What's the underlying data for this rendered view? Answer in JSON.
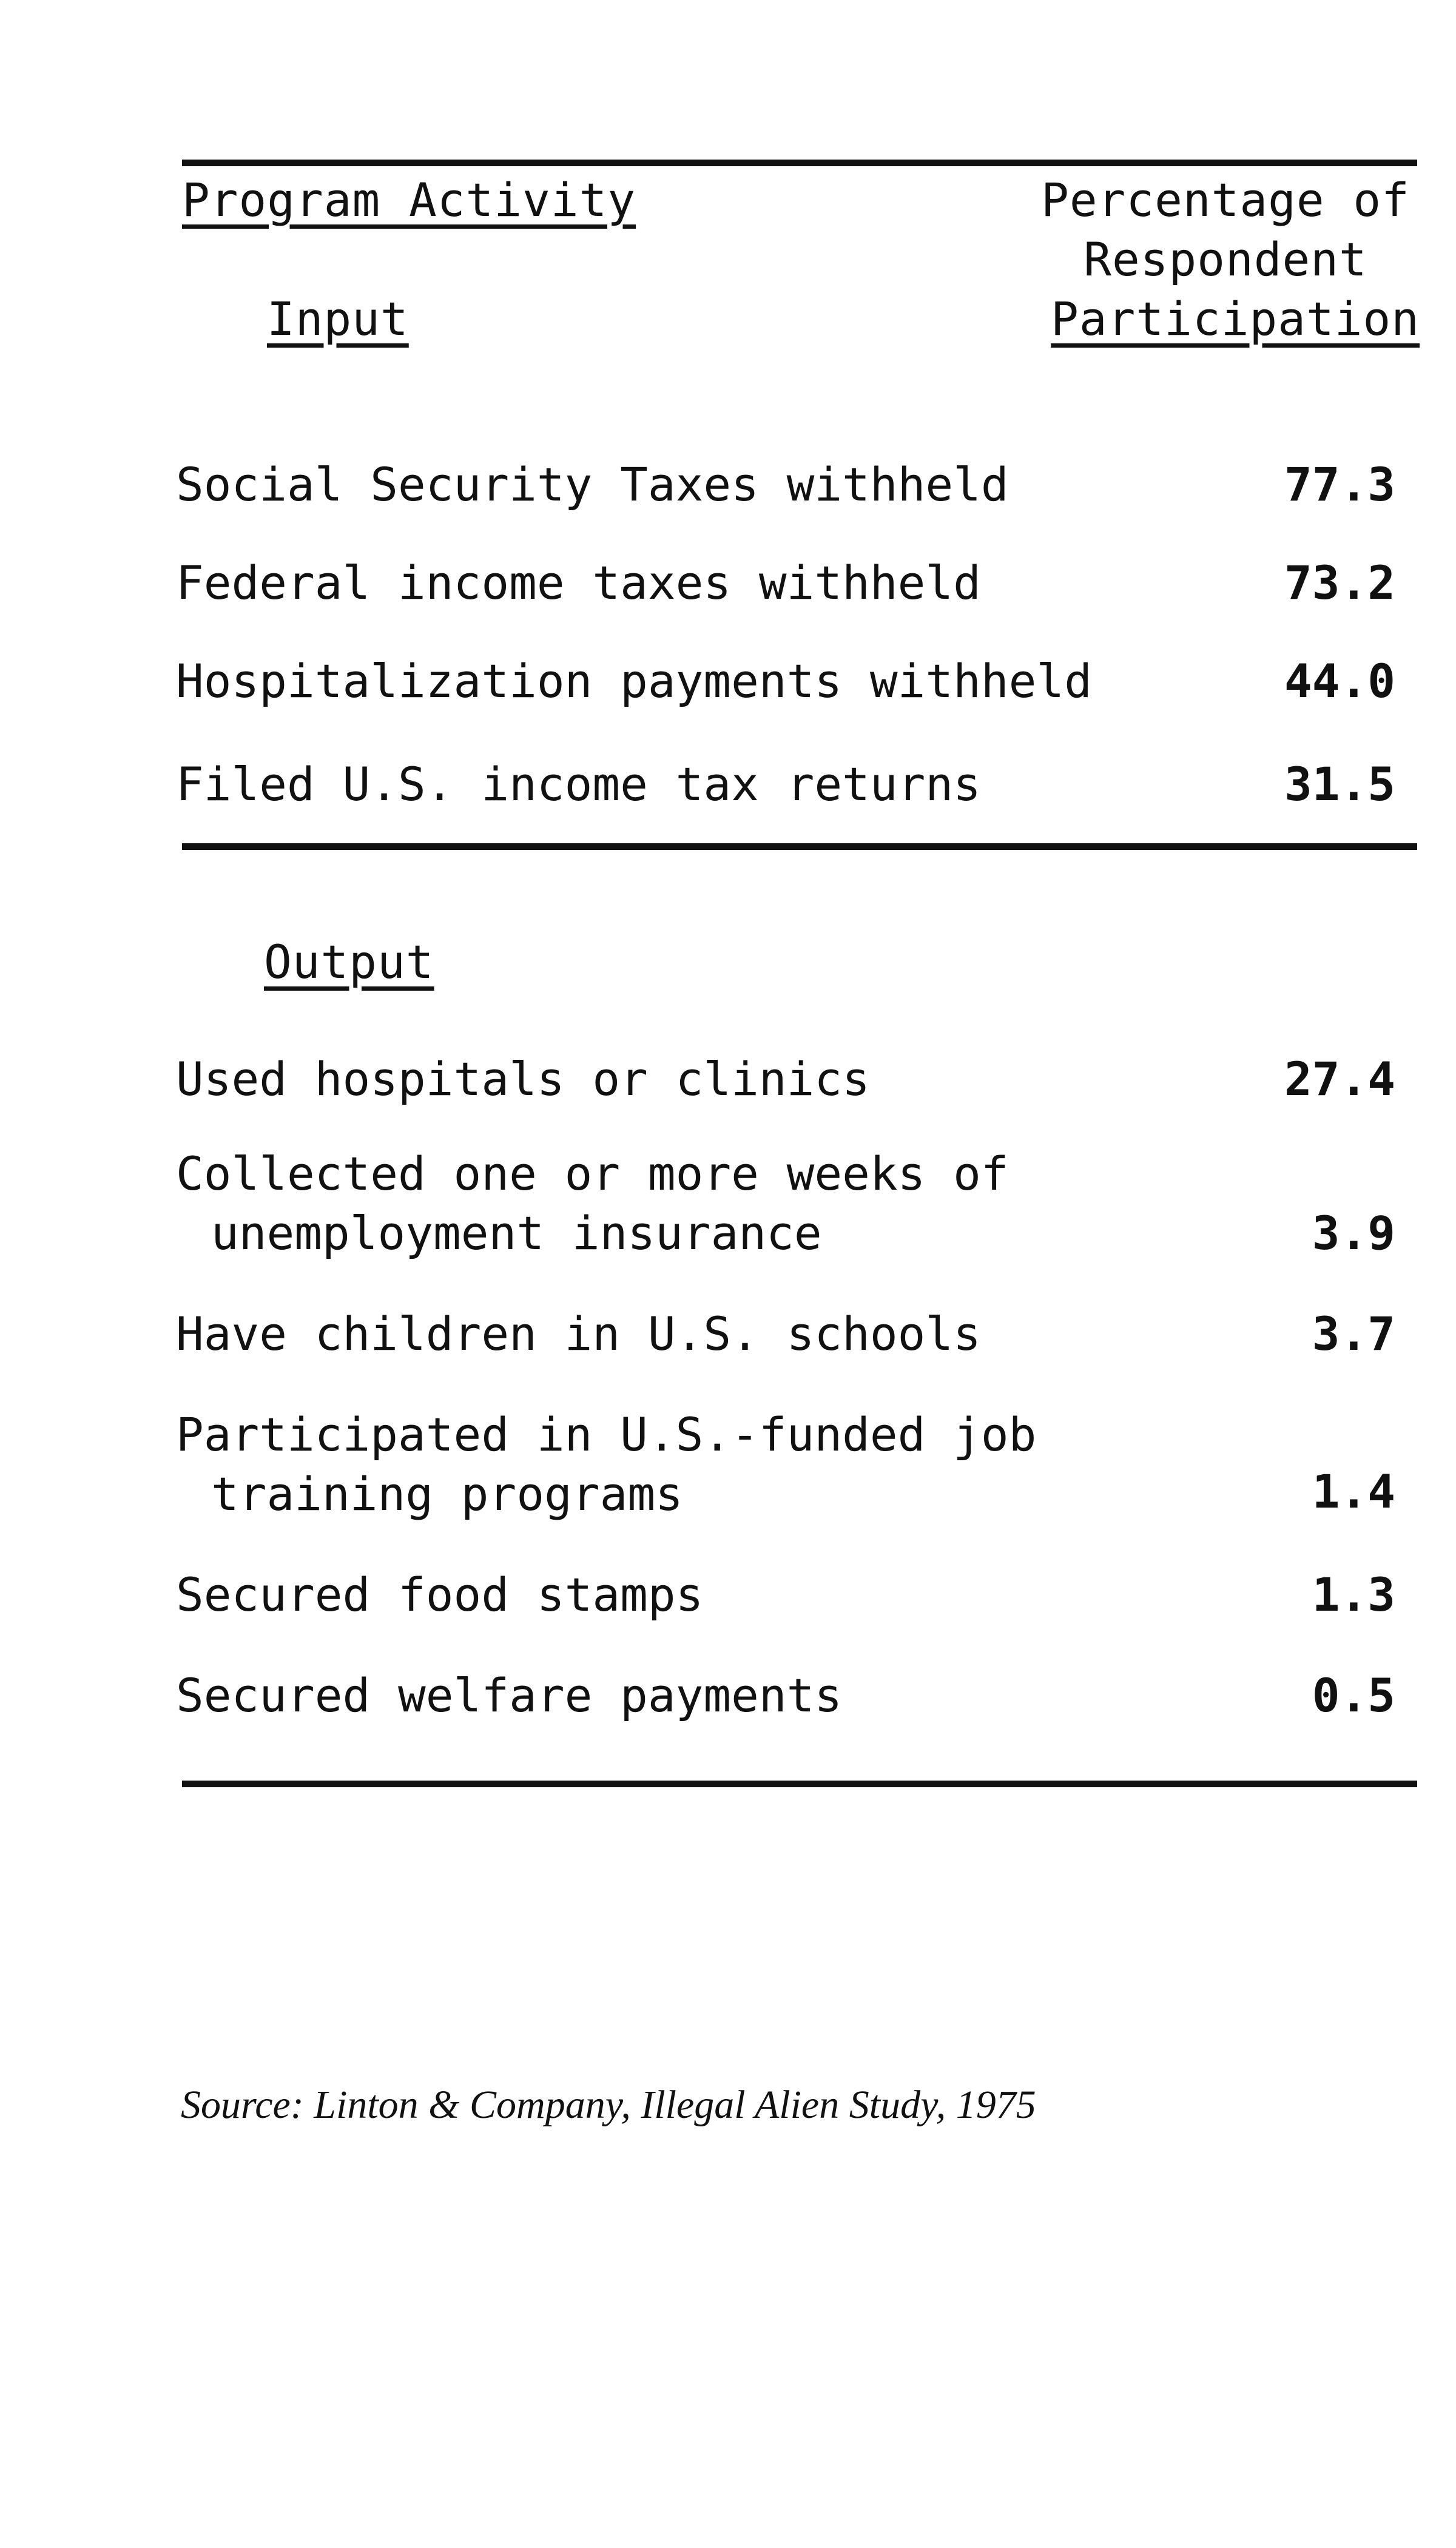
{
  "header": {
    "left_label": "Program Activity",
    "right_label_lines": [
      "Percentage of",
      "Respondent",
      "Participation"
    ]
  },
  "input_section": {
    "title": "Input",
    "rows": [
      {
        "label": "Social Security Taxes withheld",
        "value": "77.3"
      },
      {
        "label": "Federal income taxes withheld",
        "value": "73.2"
      },
      {
        "label": "Hospitalization payments withheld",
        "value": "44.0"
      },
      {
        "label": "Filed U.S. income tax returns",
        "value": "31.5"
      }
    ]
  },
  "output_section": {
    "title": "Output",
    "rows": [
      {
        "label_lines": [
          "Used hospitals or clinics"
        ],
        "value": "27.4"
      },
      {
        "label_lines": [
          "Collected one or more weeks of",
          "unemployment insurance"
        ],
        "value": "3.9"
      },
      {
        "label_lines": [
          "Have children in U.S. schools"
        ],
        "value": "3.7"
      },
      {
        "label_lines": [
          "Participated in U.S.-funded job",
          "training programs"
        ],
        "value": "1.4"
      },
      {
        "label_lines": [
          "Secured food stamps"
        ],
        "value": "1.3"
      },
      {
        "label_lines": [
          "Secured welfare payments"
        ],
        "value": "0.5"
      }
    ]
  },
  "source": "Source: Linton & Company, Illegal Alien Study, 1975"
}
